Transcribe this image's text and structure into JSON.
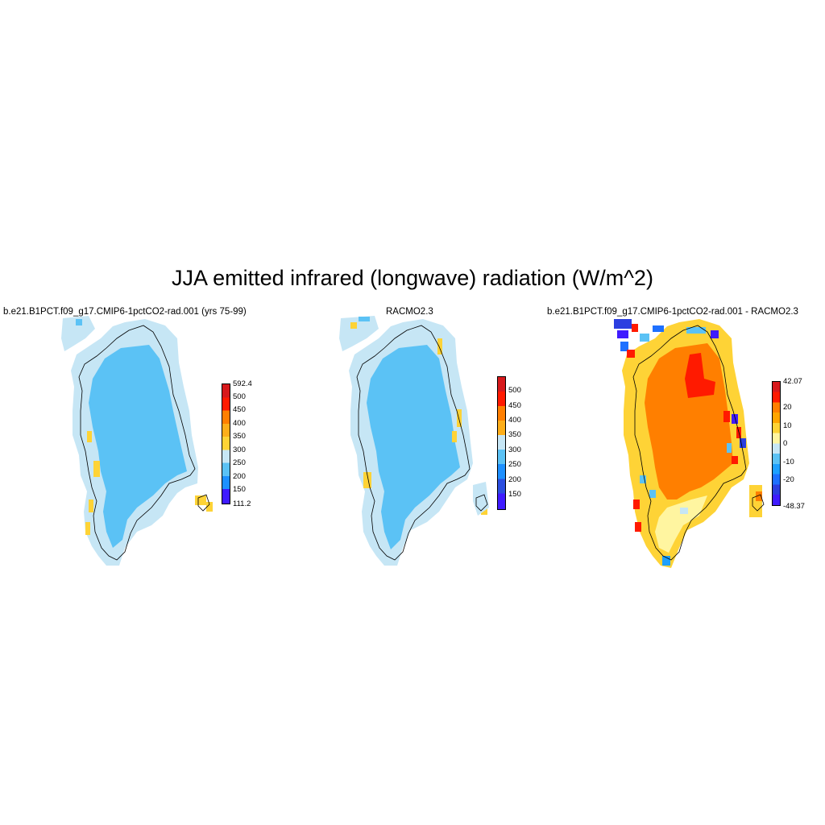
{
  "title": "JJA emitted infrared (longwave) radiation (W/m^2)",
  "panels": [
    {
      "title": "b.e21.B1PCT.f09_g17.CMIP6-1pctCO2-rad.001 (yrs 75-99)",
      "colorbar": {
        "labels": [
          "592.4",
          "500",
          "450",
          "400",
          "350",
          "300",
          "250",
          "200",
          "150",
          "111.2"
        ],
        "colors": [
          "#d7191c",
          "#ff1a00",
          "#ff7f00",
          "#fdae1a",
          "#fed336",
          "#c6e6f5",
          "#5bc2f5",
          "#1e90ff",
          "#2b4ee0",
          "#3f1bff"
        ]
      },
      "field": "ice sheet ~300-350 (light blue), coast ~350-400 (pale/yellow)"
    },
    {
      "title": "RACMO2.3",
      "colorbar": {
        "labels": [
          "500",
          "450",
          "400",
          "350",
          "300",
          "250",
          "200",
          "150"
        ],
        "colors": [
          "#d7191c",
          "#ff1a00",
          "#ff7f00",
          "#fdae1a",
          "#fed336",
          "#c6e6f5",
          "#5bc2f5",
          "#1e90ff",
          "#3f1bff"
        ]
      },
      "field": "ice sheet ~300-350 (light blue), coast ~350-400 (pale/yellow)"
    },
    {
      "title": "b.e21.B1PCT.f09_g17.CMIP6-1pctCO2-rad.001 - RACMO2.3",
      "colorbar": {
        "labels": [
          "42.07",
          "20",
          "10",
          "0",
          "-10",
          "-20",
          "-48.37"
        ],
        "colors": [
          "#d7191c",
          "#ff1a00",
          "#ff7f00",
          "#ffa500",
          "#fed336",
          "#fff5a0",
          "#c6e6f5",
          "#5bc2f5",
          "#1ea0ff",
          "#1e70ff",
          "#2b3ee0",
          "#3f1bff"
        ]
      },
      "field": "interior ~10-20 (orange), core >20 (red), margins mixed"
    }
  ],
  "colors": {
    "ice_light_blue": "#5bc2f5",
    "coast_pale_blue": "#c6e6f5",
    "yellow": "#fed336",
    "orange": "#ff7f00",
    "red": "#ff1a00"
  }
}
